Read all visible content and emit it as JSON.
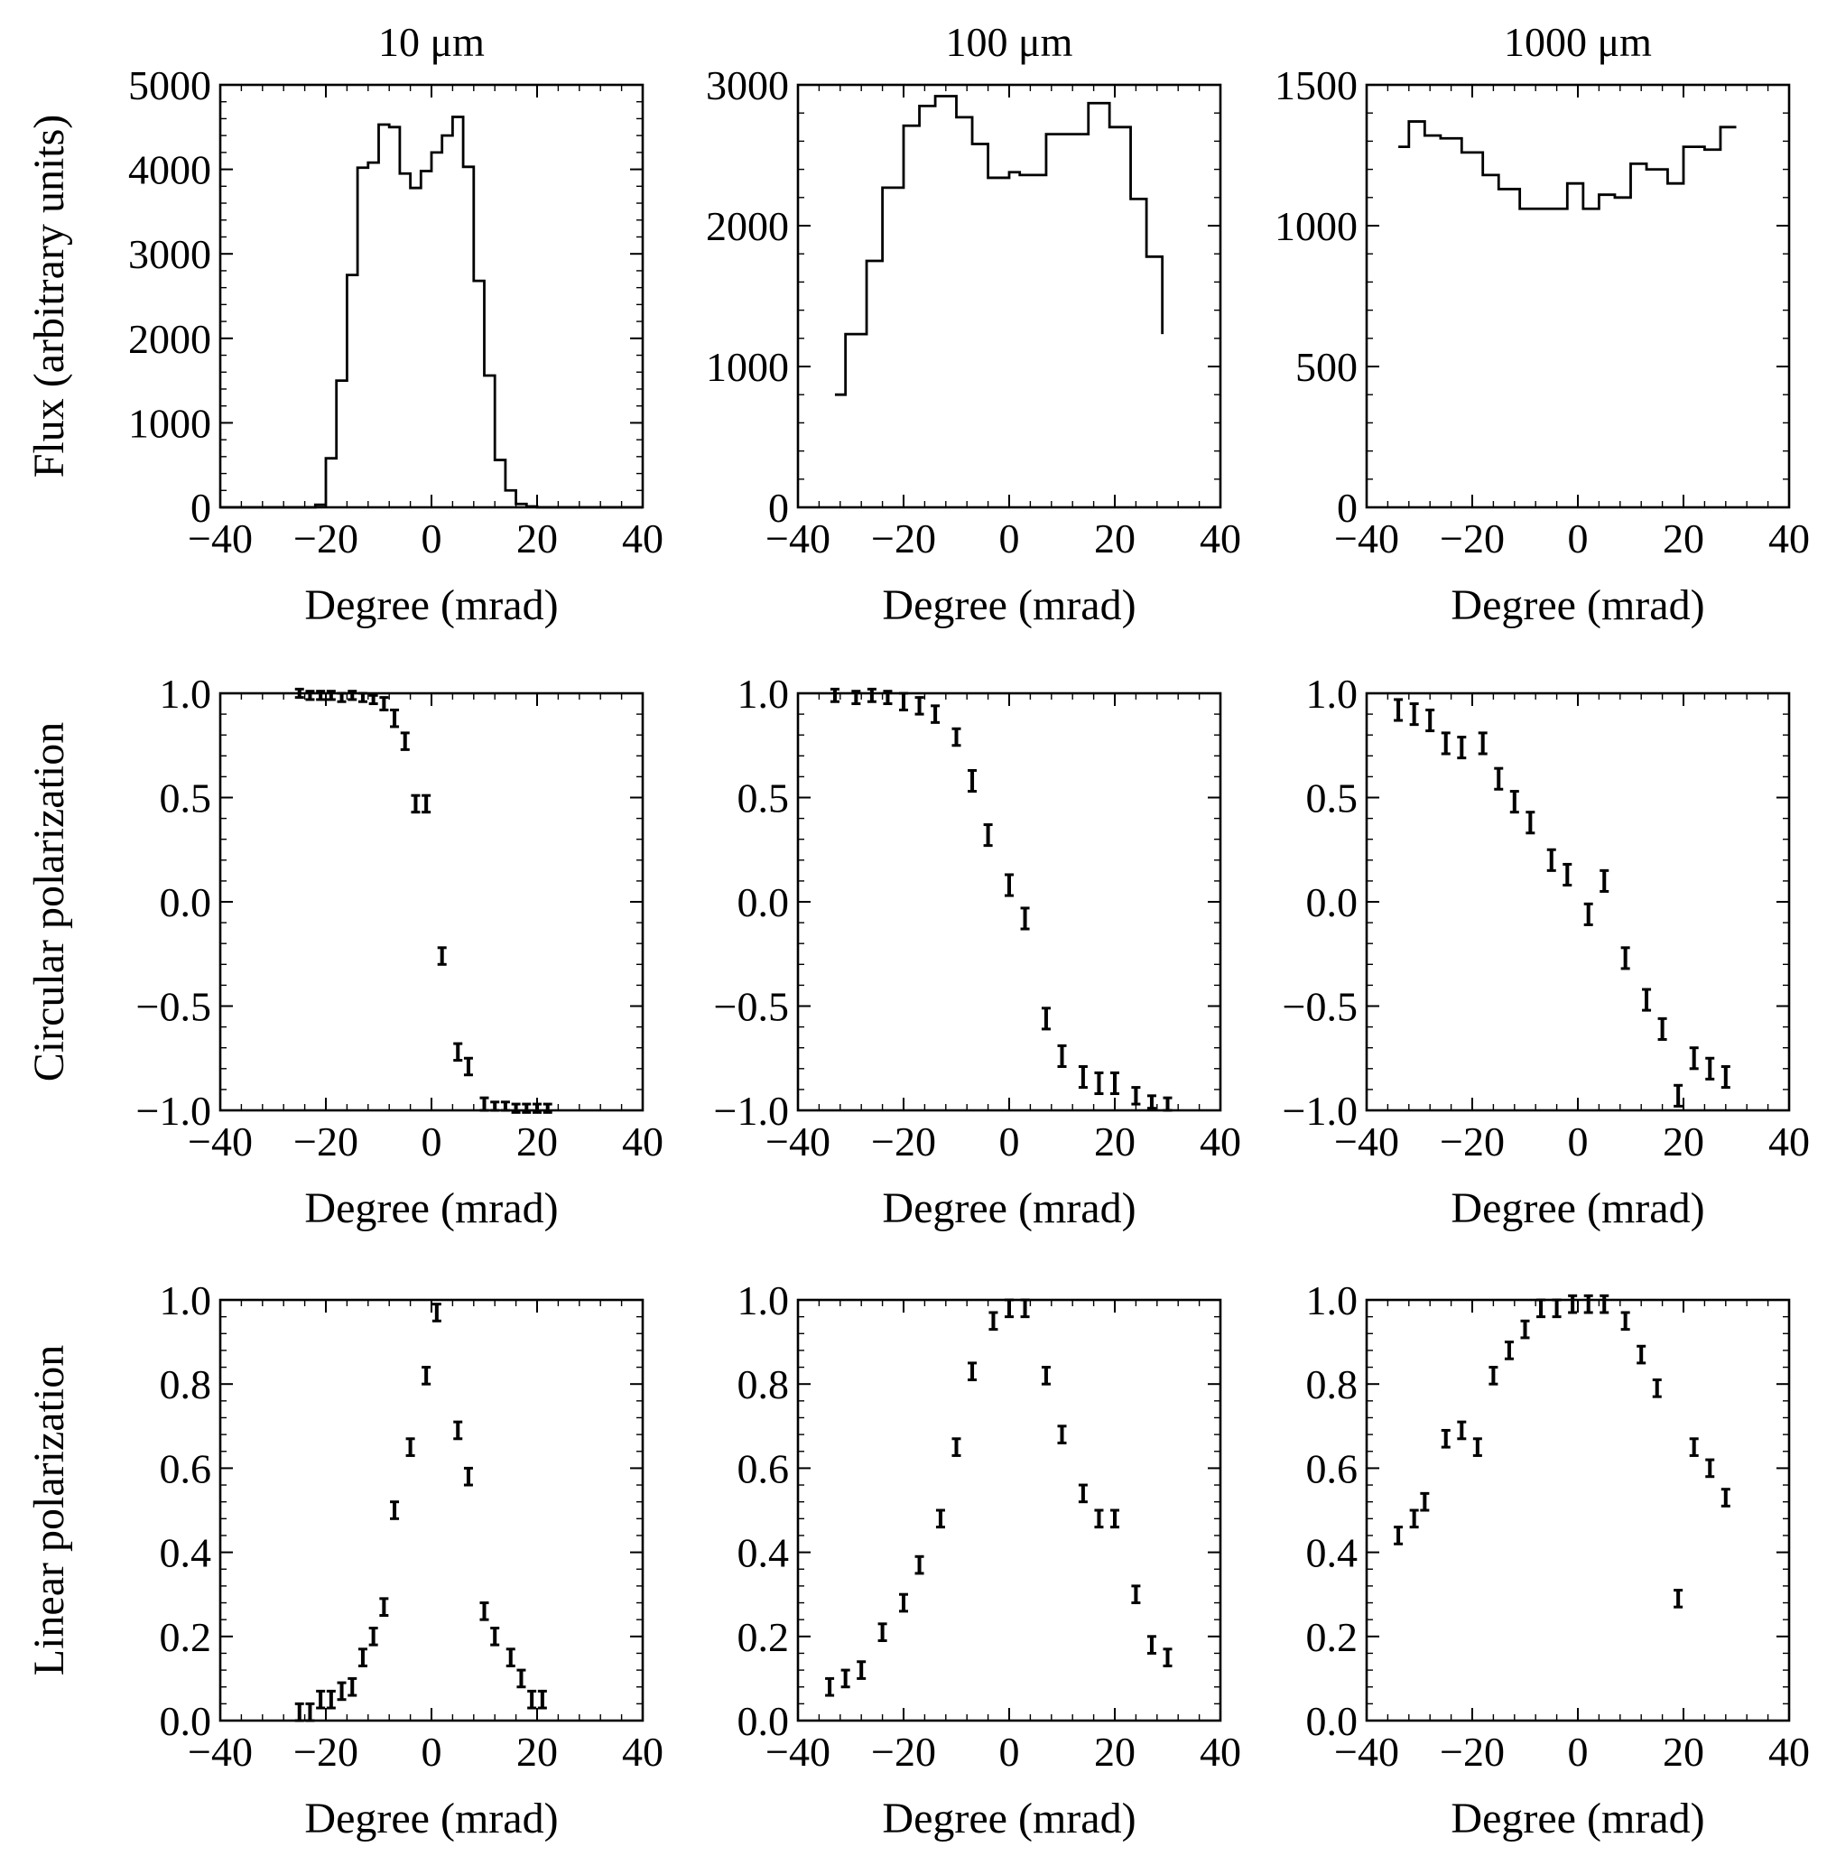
{
  "chart_data": [
    {
      "type": "line",
      "style": "step",
      "title": "10 μm",
      "xlabel": "Degree (mrad)",
      "ylabel": "Flux (arbitrary units)",
      "xlim": [
        -40,
        40
      ],
      "ylim": [
        0,
        5000
      ],
      "xticks": [
        "−40",
        "−20",
        "0",
        "20",
        "40"
      ],
      "yticks": [
        "0",
        "1000",
        "2000",
        "3000",
        "4000",
        "5000"
      ],
      "series": [
        {
          "x": [
            -40,
            -22,
            -20,
            -18,
            -16,
            -14,
            -12,
            -10,
            -8,
            -6,
            -4,
            -2,
            0,
            2,
            4,
            6,
            8,
            10,
            12,
            14,
            16,
            18,
            20,
            22,
            40
          ],
          "y": [
            0,
            30,
            580,
            1500,
            2750,
            4020,
            4080,
            4530,
            4500,
            3950,
            3780,
            3980,
            4200,
            4400,
            4620,
            4030,
            2680,
            1560,
            560,
            200,
            40,
            10,
            0,
            0,
            0
          ]
        }
      ]
    },
    {
      "type": "line",
      "style": "step",
      "title": "100 μm",
      "xlabel": "Degree (mrad)",
      "ylabel": "",
      "xlim": [
        -40,
        40
      ],
      "ylim": [
        0,
        3000
      ],
      "xticks": [
        "−40",
        "−20",
        "0",
        "20",
        "40"
      ],
      "yticks": [
        "0",
        "1000",
        "2000",
        "3000"
      ],
      "series": [
        {
          "x": [
            -33,
            -31,
            -27,
            -24,
            -20,
            -17,
            -14,
            -10,
            -7,
            -4,
            0,
            2,
            7,
            11,
            15,
            19,
            23,
            26,
            29
          ],
          "y": [
            800,
            1230,
            1750,
            2270,
            2710,
            2850,
            2920,
            2770,
            2580,
            2340,
            2380,
            2360,
            2650,
            2650,
            2870,
            2700,
            2190,
            1780,
            1230
          ]
        }
      ]
    },
    {
      "type": "line",
      "style": "step",
      "title": "1000 μm",
      "xlabel": "Degree (mrad)",
      "ylabel": "",
      "xlim": [
        -40,
        40
      ],
      "ylim": [
        0,
        1500
      ],
      "xticks": [
        "−40",
        "−20",
        "0",
        "20",
        "40"
      ],
      "yticks": [
        "0",
        "500",
        "1000",
        "1500"
      ],
      "series": [
        {
          "x": [
            -34,
            -32,
            -29,
            -26,
            -22,
            -18,
            -15,
            -11,
            -6,
            -2,
            1,
            4,
            7,
            10,
            13,
            17,
            20,
            24,
            27,
            30
          ],
          "y": [
            1280,
            1370,
            1320,
            1310,
            1260,
            1180,
            1130,
            1060,
            1060,
            1150,
            1060,
            1110,
            1100,
            1220,
            1200,
            1150,
            1280,
            1270,
            1350,
            1350
          ]
        }
      ]
    },
    {
      "type": "scatter",
      "error_bars": true,
      "title": "",
      "xlabel": "Degree (mrad)",
      "ylabel": "Circular polarization",
      "xlim": [
        -40,
        40
      ],
      "ylim": [
        -1.0,
        1.0
      ],
      "xticks": [
        "−40",
        "−20",
        "0",
        "20",
        "40"
      ],
      "yticks": [
        "−1.0",
        "−0.5",
        "0.0",
        "0.5",
        "1.0"
      ],
      "series": [
        {
          "x": [
            -25,
            -23,
            -21,
            -19,
            -17,
            -15,
            -13,
            -11,
            -9,
            -7,
            -5,
            -3,
            -1,
            2,
            5,
            7,
            10,
            12,
            14,
            16,
            18,
            20,
            22
          ],
          "y": [
            1.0,
            0.99,
            0.99,
            0.99,
            0.98,
            0.99,
            0.98,
            0.97,
            0.95,
            0.88,
            0.77,
            0.47,
            0.47,
            -0.26,
            -0.72,
            -0.79,
            -0.97,
            -0.98,
            -0.98,
            -0.99,
            -0.99,
            -0.99,
            -0.99
          ],
          "err": [
            0.02,
            0.02,
            0.02,
            0.02,
            0.02,
            0.02,
            0.02,
            0.02,
            0.03,
            0.04,
            0.04,
            0.04,
            0.04,
            0.04,
            0.04,
            0.04,
            0.03,
            0.02,
            0.02,
            0.02,
            0.02,
            0.02,
            0.02
          ]
        }
      ]
    },
    {
      "type": "scatter",
      "error_bars": true,
      "title": "",
      "xlabel": "Degree (mrad)",
      "ylabel": "",
      "xlim": [
        -40,
        40
      ],
      "ylim": [
        -1.0,
        1.0
      ],
      "xticks": [
        "−40",
        "−20",
        "0",
        "20",
        "40"
      ],
      "yticks": [
        "−1.0",
        "−0.5",
        "0.0",
        "0.5",
        "1.0"
      ],
      "series": [
        {
          "x": [
            -33,
            -29,
            -26,
            -23,
            -20,
            -17,
            -14,
            -10,
            -7,
            -4,
            0,
            3,
            7,
            10,
            14,
            17,
            20,
            24,
            27,
            30
          ],
          "y": [
            0.99,
            0.98,
            0.99,
            0.98,
            0.96,
            0.94,
            0.9,
            0.79,
            0.58,
            0.32,
            0.08,
            -0.08,
            -0.56,
            -0.74,
            -0.84,
            -0.87,
            -0.87,
            -0.93,
            -0.96,
            -0.97
          ],
          "err": [
            0.03,
            0.03,
            0.03,
            0.03,
            0.04,
            0.04,
            0.04,
            0.04,
            0.05,
            0.05,
            0.05,
            0.05,
            0.05,
            0.05,
            0.05,
            0.05,
            0.05,
            0.04,
            0.03,
            0.03
          ]
        }
      ]
    },
    {
      "type": "scatter",
      "error_bars": true,
      "title": "",
      "xlabel": "Degree (mrad)",
      "ylabel": "",
      "xlim": [
        -40,
        40
      ],
      "ylim": [
        -1.0,
        1.0
      ],
      "xticks": [
        "−40",
        "−20",
        "0",
        "20",
        "40"
      ],
      "yticks": [
        "−1.0",
        "−0.5",
        "0.0",
        "0.5",
        "1.0"
      ],
      "series": [
        {
          "x": [
            -34,
            -31,
            -28,
            -25,
            -22,
            -18,
            -15,
            -12,
            -9,
            -5,
            -2,
            2,
            5,
            9,
            13,
            16,
            19,
            22,
            25,
            28
          ],
          "y": [
            0.92,
            0.9,
            0.87,
            0.76,
            0.74,
            0.76,
            0.59,
            0.48,
            0.38,
            0.2,
            0.13,
            -0.06,
            0.1,
            -0.27,
            -0.47,
            -0.61,
            -0.93,
            -0.75,
            -0.8,
            -0.84
          ],
          "err": [
            0.05,
            0.05,
            0.05,
            0.05,
            0.05,
            0.05,
            0.05,
            0.05,
            0.05,
            0.05,
            0.05,
            0.05,
            0.05,
            0.05,
            0.05,
            0.05,
            0.05,
            0.05,
            0.05,
            0.05
          ]
        }
      ]
    },
    {
      "type": "scatter",
      "error_bars": true,
      "title": "",
      "xlabel": "Degree (mrad)",
      "ylabel": "Linear polarization",
      "xlim": [
        -40,
        40
      ],
      "ylim": [
        0.0,
        1.0
      ],
      "xticks": [
        "−40",
        "−20",
        "0",
        "20",
        "40"
      ],
      "yticks": [
        "0.0",
        "0.2",
        "0.4",
        "0.6",
        "0.8",
        "1.0"
      ],
      "series": [
        {
          "x": [
            -25,
            -23,
            -21,
            -19,
            -17,
            -15,
            -13,
            -11,
            -9,
            -7,
            -4,
            -1,
            1,
            5,
            7,
            10,
            12,
            15,
            17,
            19,
            21
          ],
          "y": [
            0.02,
            0.02,
            0.05,
            0.05,
            0.07,
            0.08,
            0.15,
            0.2,
            0.27,
            0.5,
            0.65,
            0.82,
            0.97,
            0.69,
            0.58,
            0.26,
            0.2,
            0.15,
            0.1,
            0.05,
            0.05
          ],
          "err": [
            0.02,
            0.02,
            0.02,
            0.02,
            0.02,
            0.02,
            0.02,
            0.02,
            0.02,
            0.02,
            0.02,
            0.02,
            0.02,
            0.02,
            0.02,
            0.02,
            0.02,
            0.02,
            0.02,
            0.02,
            0.02
          ]
        }
      ]
    },
    {
      "type": "scatter",
      "error_bars": true,
      "title": "",
      "xlabel": "Degree (mrad)",
      "ylabel": "",
      "xlim": [
        -40,
        40
      ],
      "ylim": [
        0.0,
        1.0
      ],
      "xticks": [
        "−40",
        "−20",
        "0",
        "20",
        "40"
      ],
      "yticks": [
        "0.0",
        "0.2",
        "0.4",
        "0.6",
        "0.8",
        "1.0"
      ],
      "series": [
        {
          "x": [
            -34,
            -31,
            -28,
            -24,
            -20,
            -17,
            -13,
            -10,
            -7,
            -3,
            0,
            3,
            7,
            10,
            14,
            17,
            20,
            24,
            27,
            30
          ],
          "y": [
            0.08,
            0.1,
            0.12,
            0.21,
            0.28,
            0.37,
            0.48,
            0.65,
            0.83,
            0.95,
            0.98,
            0.98,
            0.82,
            0.68,
            0.54,
            0.48,
            0.48,
            0.3,
            0.18,
            0.15
          ],
          "err": [
            0.02,
            0.02,
            0.02,
            0.02,
            0.02,
            0.02,
            0.02,
            0.02,
            0.02,
            0.02,
            0.02,
            0.02,
            0.02,
            0.02,
            0.02,
            0.02,
            0.02,
            0.02,
            0.02,
            0.02
          ]
        }
      ]
    },
    {
      "type": "scatter",
      "error_bars": true,
      "title": "",
      "xlabel": "Degree (mrad)",
      "ylabel": "",
      "xlim": [
        -40,
        40
      ],
      "ylim": [
        0.0,
        1.0
      ],
      "xticks": [
        "−40",
        "−20",
        "0",
        "20",
        "40"
      ],
      "yticks": [
        "0.0",
        "0.2",
        "0.4",
        "0.6",
        "0.8",
        "1.0"
      ],
      "series": [
        {
          "x": [
            -34,
            -31,
            -29,
            -25,
            -22,
            -19,
            -16,
            -13,
            -10,
            -7,
            -4,
            -1,
            2,
            5,
            9,
            12,
            15,
            19,
            22,
            25,
            28
          ],
          "y": [
            0.44,
            0.48,
            0.52,
            0.67,
            0.69,
            0.65,
            0.82,
            0.88,
            0.93,
            0.98,
            0.98,
            0.99,
            0.99,
            0.99,
            0.95,
            0.87,
            0.79,
            0.29,
            0.65,
            0.6,
            0.53
          ],
          "err": [
            0.02,
            0.02,
            0.02,
            0.02,
            0.02,
            0.02,
            0.02,
            0.02,
            0.02,
            0.02,
            0.02,
            0.02,
            0.02,
            0.02,
            0.02,
            0.02,
            0.02,
            0.02,
            0.02,
            0.02,
            0.02
          ]
        }
      ]
    }
  ]
}
